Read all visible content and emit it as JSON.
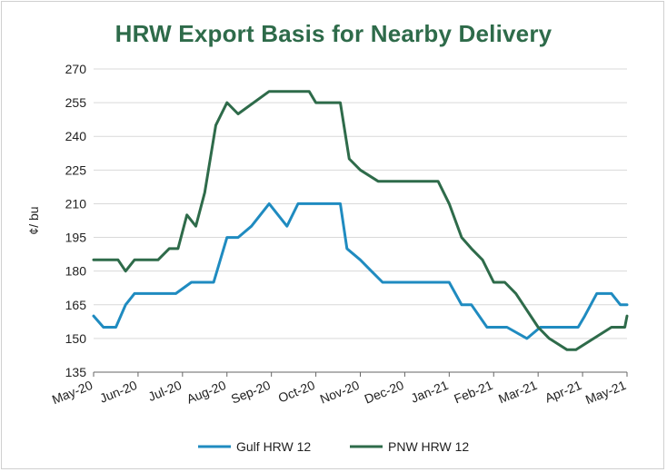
{
  "chart_data": {
    "type": "line",
    "title": "HRW Export Basis for Nearby Delivery",
    "ylabel": "¢/ bu",
    "xlabel": "",
    "ylim": [
      135,
      270
    ],
    "yticks": [
      135,
      150,
      165,
      180,
      195,
      210,
      225,
      240,
      255,
      270
    ],
    "xlim": [
      0,
      12
    ],
    "x_tick_labels": [
      "May-20",
      "Jun-20",
      "Jul-20",
      "Aug-20",
      "Sep-20",
      "Oct-20",
      "Nov-20",
      "Dec-20",
      "Jan-21",
      "Feb-21",
      "Mar-21",
      "Apr-21",
      "May-21"
    ],
    "grid": "horizontal",
    "legend_position": "bottom",
    "series": [
      {
        "name": "Gulf HRW 12",
        "color": "#1f8bc0",
        "x": [
          0,
          0.22,
          0.5,
          0.72,
          0.92,
          1.3,
          1.85,
          2.2,
          2.7,
          3.0,
          3.25,
          3.55,
          3.95,
          4.35,
          4.6,
          4.85,
          5.55,
          5.7,
          6.0,
          6.25,
          6.5,
          6.85,
          8.0,
          8.28,
          8.5,
          8.85,
          9.3,
          9.75,
          10.05,
          10.25,
          10.9,
          11.05,
          11.32,
          11.65,
          11.85,
          12.0
        ],
        "y": [
          160,
          155,
          155,
          165,
          170,
          170,
          170,
          175,
          175,
          195,
          195,
          200,
          210,
          200,
          210,
          210,
          210,
          190,
          185,
          180,
          175,
          175,
          175,
          165,
          165,
          155,
          155,
          150,
          155,
          155,
          155,
          160,
          170,
          170,
          165,
          165
        ]
      },
      {
        "name": "PNW HRW 12",
        "color": "#2e6b4a",
        "x": [
          0,
          0.55,
          0.72,
          0.92,
          1.45,
          1.7,
          1.9,
          2.1,
          2.3,
          2.5,
          2.75,
          3.0,
          3.25,
          3.95,
          4.85,
          5.0,
          5.55,
          5.75,
          6.0,
          6.4,
          6.85,
          7.5,
          7.75,
          8.0,
          8.28,
          8.5,
          8.75,
          9.0,
          9.25,
          9.5,
          10.0,
          10.25,
          10.65,
          10.85,
          11.65,
          11.95,
          12.0
        ],
        "y": [
          185,
          185,
          180,
          185,
          185,
          190,
          190,
          205,
          200,
          215,
          245,
          255,
          250,
          260,
          260,
          255,
          255,
          230,
          225,
          220,
          220,
          220,
          220,
          210,
          195,
          190,
          185,
          175,
          175,
          170,
          155,
          150,
          145,
          145,
          155,
          155,
          160
        ]
      }
    ]
  }
}
